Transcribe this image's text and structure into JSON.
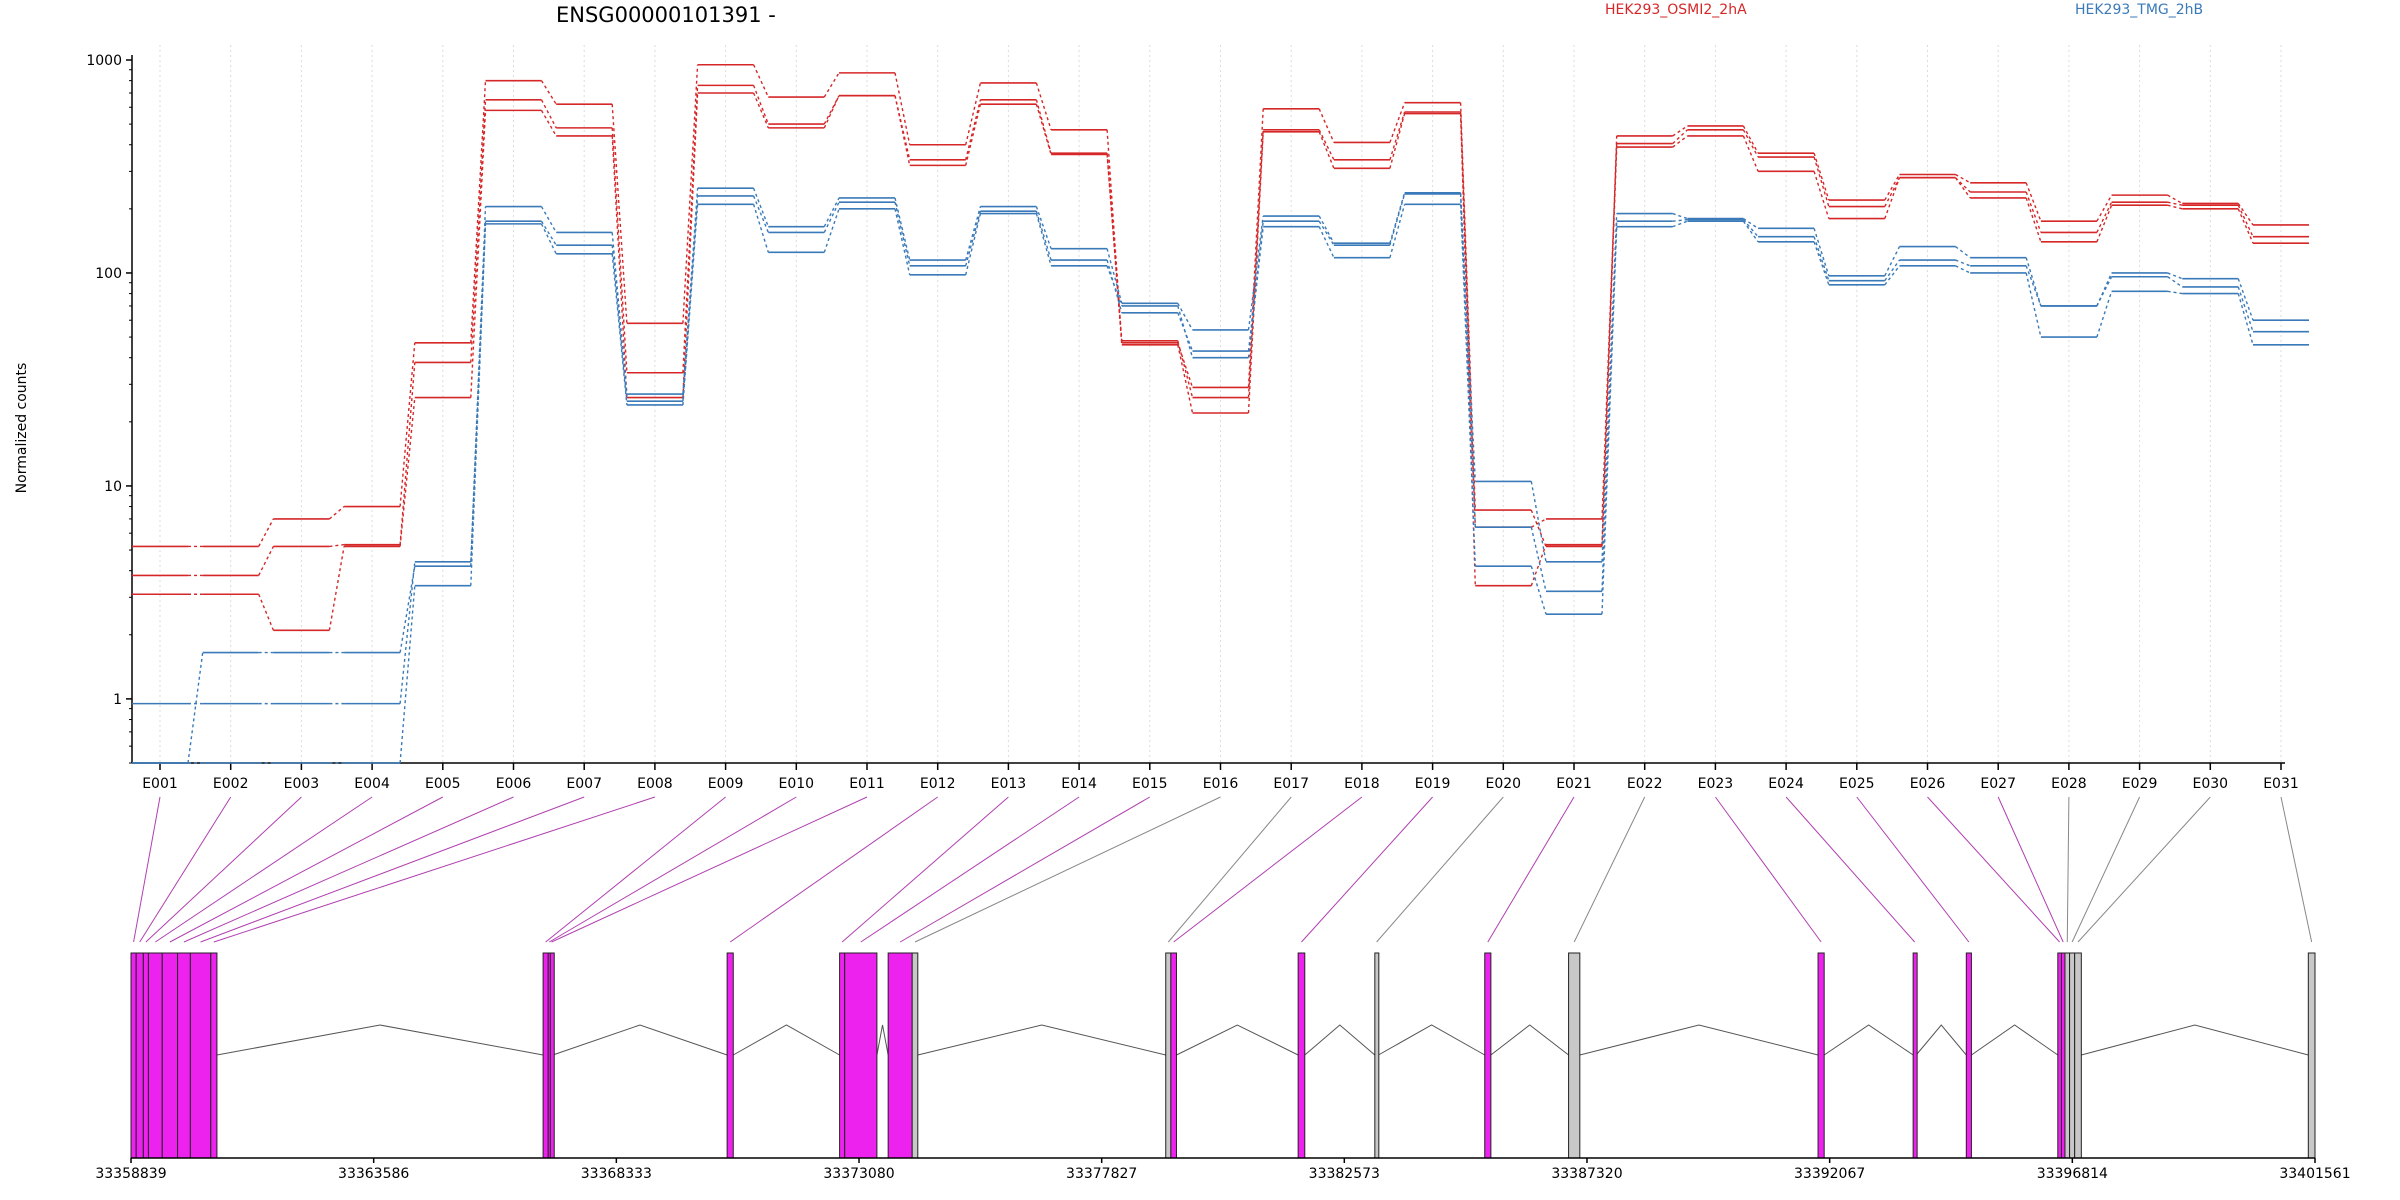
{
  "chart_data": {
    "type": "line",
    "title": "ENSG00000101391 -",
    "ylabel": "Normalized counts",
    "xlabel": "",
    "yscale": "log",
    "ylim": [
      0.5,
      1000
    ],
    "yticks": [
      "1",
      "10",
      "100",
      "1000"
    ],
    "grid": "vertical dotted lines at each exon",
    "legend_placement": "top",
    "categories": [
      "E001",
      "E002",
      "E003",
      "E004",
      "E005",
      "E006",
      "E007",
      "E008",
      "E009",
      "E010",
      "E011",
      "E012",
      "E013",
      "E014",
      "E015",
      "E016",
      "E017",
      "E018",
      "E019",
      "E020",
      "E021",
      "E022",
      "E023",
      "E024",
      "E025",
      "E026",
      "E027",
      "E028",
      "E029",
      "E030",
      "E031"
    ],
    "series": [
      {
        "name": "HEK293_OSMI2_2hA",
        "group": "HEK293_OSMI2_2hA",
        "color": "#d62728",
        "values": [
          5.2,
          5.2,
          7.0,
          8.0,
          47,
          800,
          620,
          58,
          950,
          670,
          870,
          400,
          780,
          470,
          47,
          29,
          590,
          410,
          630,
          7.7,
          5.2,
          440,
          490,
          365,
          220,
          290,
          265,
          175,
          232,
          212,
          168
        ]
      },
      {
        "name": "",
        "group": "HEK293_OSMI2_2hA",
        "color": "#d62728",
        "values": [
          3.8,
          3.8,
          5.2,
          5.3,
          38,
          650,
          480,
          34,
          760,
          500,
          680,
          340,
          650,
          365,
          48,
          26,
          470,
          340,
          570,
          6.4,
          7.0,
          405,
          470,
          350,
          205,
          280,
          240,
          155,
          215,
          208,
          148
        ]
      },
      {
        "name": "",
        "group": "HEK293_OSMI2_2hA",
        "color": "#d62728",
        "values": [
          3.1,
          3.1,
          2.1,
          5.2,
          26,
          580,
          440,
          26,
          700,
          480,
          680,
          320,
          620,
          360,
          46,
          22,
          460,
          310,
          560,
          3.4,
          5.3,
          390,
          440,
          300,
          180,
          280,
          225,
          140,
          208,
          200,
          138
        ]
      },
      {
        "name": "HEK293_TMG_2hB",
        "group": "HEK293_TMG_2hB",
        "color": "#3a7ab8",
        "values": [
          0.95,
          0.95,
          0.95,
          0.95,
          4.4,
          205,
          155,
          27,
          250,
          165,
          225,
          115,
          205,
          130,
          72,
          54,
          185,
          138,
          238,
          10.5,
          4.4,
          190,
          180,
          162,
          97,
          133,
          118,
          70,
          100,
          94,
          60
        ]
      },
      {
        "name": "",
        "group": "HEK293_TMG_2hB",
        "color": "#3a7ab8",
        "values": [
          0.5,
          1.65,
          1.65,
          1.65,
          4.2,
          175,
          135,
          25,
          230,
          155,
          215,
          108,
          195,
          115,
          65,
          43,
          175,
          135,
          235,
          6.4,
          3.2,
          175,
          178,
          148,
          92,
          115,
          108,
          70,
          96,
          86,
          53
        ]
      },
      {
        "name": "",
        "group": "HEK293_TMG_2hB",
        "color": "#3a7ab8",
        "values": [
          0.5,
          0.5,
          0.5,
          0.5,
          3.4,
          170,
          123,
          24,
          210,
          125,
          200,
          98,
          190,
          108,
          70,
          40,
          165,
          118,
          210,
          4.2,
          2.5,
          165,
          175,
          140,
          88,
          108,
          100,
          50,
          82,
          80,
          46
        ]
      }
    ],
    "gene_model": {
      "coordinate_ticks": [
        "33358839",
        "33363586",
        "33368333",
        "33373080",
        "33377827",
        "33382573",
        "33387320",
        "33392067",
        "33396814",
        "33401561"
      ],
      "range": [
        33358839,
        33401561
      ],
      "exon_fill_colors": {
        "highlighted": "#ee22ee",
        "other": "#c8c8c8"
      },
      "exons": [
        {
          "label": "E001",
          "start": 33358839,
          "end": 33358940,
          "kind": "highlighted"
        },
        {
          "label": "E002",
          "start": 33358940,
          "end": 33359080,
          "kind": "highlighted"
        },
        {
          "label": "E003",
          "start": 33359080,
          "end": 33359180,
          "kind": "highlighted"
        },
        {
          "label": "E004",
          "start": 33359180,
          "end": 33359450,
          "kind": "highlighted"
        },
        {
          "label": "E005",
          "start": 33359450,
          "end": 33359750,
          "kind": "highlighted"
        },
        {
          "label": "E006",
          "start": 33359750,
          "end": 33360000,
          "kind": "highlighted"
        },
        {
          "label": "E007",
          "start": 33360000,
          "end": 33360400,
          "kind": "highlighted"
        },
        {
          "label": "E008",
          "start": 33360400,
          "end": 33360520,
          "kind": "highlighted"
        },
        {
          "label": "E009",
          "start": 33366900,
          "end": 33367000,
          "kind": "highlighted"
        },
        {
          "label": "E010",
          "start": 33367000,
          "end": 33367040,
          "kind": "highlighted"
        },
        {
          "label": "E011",
          "start": 33367040,
          "end": 33367090,
          "kind": "highlighted"
        },
        {
          "label": "E012",
          "start": 33370500,
          "end": 33370620,
          "kind": "highlighted"
        },
        {
          "label": "E013",
          "start": 33372700,
          "end": 33372800,
          "kind": "highlighted"
        },
        {
          "label": "E014",
          "start": 33372800,
          "end": 33373430,
          "kind": "highlighted"
        },
        {
          "label": "E015",
          "start": 33373650,
          "end": 33374120,
          "kind": "highlighted"
        },
        {
          "label": "E016",
          "start": 33374120,
          "end": 33374230,
          "kind": "other"
        },
        {
          "label": "E017",
          "start": 33379080,
          "end": 33379180,
          "kind": "other"
        },
        {
          "label": "E018",
          "start": 33379180,
          "end": 33379290,
          "kind": "highlighted"
        },
        {
          "label": "E019",
          "start": 33381670,
          "end": 33381800,
          "kind": "highlighted"
        },
        {
          "label": "E020",
          "start": 33383170,
          "end": 33383240,
          "kind": "other"
        },
        {
          "label": "E021",
          "start": 33385320,
          "end": 33385440,
          "kind": "highlighted"
        },
        {
          "label": "E022",
          "start": 33386960,
          "end": 33387180,
          "kind": "other"
        },
        {
          "label": "E023",
          "start": 33391840,
          "end": 33391960,
          "kind": "highlighted"
        },
        {
          "label": "E024",
          "start": 33393700,
          "end": 33393760,
          "kind": "highlighted"
        },
        {
          "label": "E025",
          "start": 33394740,
          "end": 33394840,
          "kind": "highlighted"
        },
        {
          "label": "E026",
          "start": 33396530,
          "end": 33396600,
          "kind": "highlighted"
        },
        {
          "label": "E027",
          "start": 33396600,
          "end": 33396670,
          "kind": "highlighted"
        },
        {
          "label": "E028",
          "start": 33396670,
          "end": 33396760,
          "kind": "other"
        },
        {
          "label": "E029",
          "start": 33396760,
          "end": 33396860,
          "kind": "other"
        },
        {
          "label": "E030",
          "start": 33396860,
          "end": 33396990,
          "kind": "other"
        },
        {
          "label": "E031",
          "start": 33401430,
          "end": 33401561,
          "kind": "other"
        }
      ],
      "introns": [
        [
          33360520,
          33366900
        ],
        [
          33367090,
          33370500
        ],
        [
          33370620,
          33372700
        ],
        [
          33373430,
          33373650
        ],
        [
          33374230,
          33379080
        ],
        [
          33379290,
          33381670
        ],
        [
          33381800,
          33383170
        ],
        [
          33383240,
          33385320
        ],
        [
          33385440,
          33386960
        ],
        [
          33387180,
          33391840
        ],
        [
          33391960,
          33393700
        ],
        [
          33393760,
          33394740
        ],
        [
          33394840,
          33396530
        ],
        [
          33396990,
          33401430
        ]
      ]
    }
  }
}
